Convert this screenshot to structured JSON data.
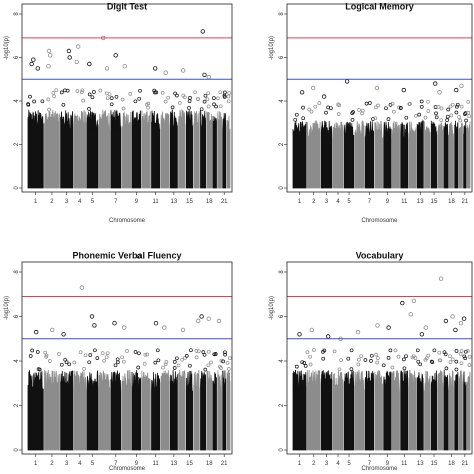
{
  "chart_data": [
    {
      "type": "scatter",
      "title": "Digit Test",
      "xlabel": "Chromosome",
      "ylabel": "-log10(p)",
      "ylim": [
        0,
        8
      ],
      "yticks": [
        0,
        2,
        4,
        6,
        8
      ],
      "x_tick_labels": [
        "1",
        "2",
        "3",
        "4",
        "5",
        "7",
        "9",
        "11",
        "13",
        "15",
        "18",
        "21"
      ],
      "chromosomes": 22,
      "threshold_lines": [
        {
          "value": 6.9,
          "color": "#e04050"
        },
        {
          "value": 5.0,
          "color": "#3a4fd6"
        }
      ],
      "point_colors": [
        "#111111",
        "#8c8c8c"
      ],
      "dense_top": 3.6,
      "peak_points": [
        {
          "chr": 1,
          "y": 5.9
        },
        {
          "chr": 1,
          "y": 5.7
        },
        {
          "chr": 1,
          "y": 5.5
        },
        {
          "chr": 2,
          "y": 6.3
        },
        {
          "chr": 2,
          "y": 6.1
        },
        {
          "chr": 2,
          "y": 5.6
        },
        {
          "chr": 3,
          "y": 6.3
        },
        {
          "chr": 3,
          "y": 6.0
        },
        {
          "chr": 4,
          "y": 6.5
        },
        {
          "chr": 4,
          "y": 5.8
        },
        {
          "chr": 5,
          "y": 5.7
        },
        {
          "chr": 6,
          "y": 6.9
        },
        {
          "chr": 6,
          "y": 5.5
        },
        {
          "chr": 7,
          "y": 6.1
        },
        {
          "chr": 8,
          "y": 5.6
        },
        {
          "chr": 11,
          "y": 5.5
        },
        {
          "chr": 12,
          "y": 5.3
        },
        {
          "chr": 14,
          "y": 5.4
        },
        {
          "chr": 17,
          "y": 7.2
        },
        {
          "chr": 17,
          "y": 5.2
        },
        {
          "chr": 18,
          "y": 5.1
        }
      ]
    },
    {
      "type": "scatter",
      "title": "Logical Memory",
      "xlabel": "Chromosome",
      "ylabel": "-log10(p)",
      "ylim": [
        0,
        8
      ],
      "yticks": [
        0,
        2,
        4,
        6,
        8
      ],
      "x_tick_labels": [
        "1",
        "2",
        "3",
        "4",
        "5",
        "7",
        "9",
        "11",
        "13",
        "15",
        "18",
        "21"
      ],
      "chromosomes": 22,
      "threshold_lines": [
        {
          "value": 6.9,
          "color": "#e04050"
        },
        {
          "value": 5.0,
          "color": "#3a4fd6"
        }
      ],
      "point_colors": [
        "#111111",
        "#8c8c8c"
      ],
      "dense_top": 3.1,
      "peak_points": [
        {
          "chr": 1,
          "y": 4.4
        },
        {
          "chr": 2,
          "y": 4.6
        },
        {
          "chr": 3,
          "y": 4.2
        },
        {
          "chr": 5,
          "y": 4.9
        },
        {
          "chr": 8,
          "y": 4.6
        },
        {
          "chr": 11,
          "y": 4.5
        },
        {
          "chr": 15,
          "y": 4.8
        },
        {
          "chr": 16,
          "y": 4.4
        },
        {
          "chr": 19,
          "y": 4.5
        },
        {
          "chr": 20,
          "y": 4.7
        }
      ]
    },
    {
      "type": "scatter",
      "title": "Phonemic Verbal Fluency",
      "xlabel": "Chromosome",
      "ylabel": "-log10(p)",
      "ylim": [
        0,
        8
      ],
      "yticks": [
        0,
        2,
        4,
        6,
        8
      ],
      "x_tick_labels": [
        "1",
        "2",
        "3",
        "4",
        "5",
        "7",
        "9",
        "11",
        "13",
        "15",
        "18",
        "21"
      ],
      "chromosomes": 22,
      "threshold_lines": [
        {
          "value": 6.9,
          "color": "#e04050"
        },
        {
          "value": 5.0,
          "color": "#3a4fd6"
        }
      ],
      "point_colors": [
        "#111111",
        "#8c8c8c"
      ],
      "dense_top": 3.6,
      "peak_points": [
        {
          "chr": 1,
          "y": 5.3
        },
        {
          "chr": 2,
          "y": 5.4
        },
        {
          "chr": 3,
          "y": 5.2
        },
        {
          "chr": 4,
          "y": 7.3
        },
        {
          "chr": 5,
          "y": 6.0
        },
        {
          "chr": 5,
          "y": 5.6
        },
        {
          "chr": 7,
          "y": 5.7
        },
        {
          "chr": 8,
          "y": 5.5
        },
        {
          "chr": 9,
          "y": 8.7
        },
        {
          "chr": 11,
          "y": 5.7
        },
        {
          "chr": 12,
          "y": 5.5
        },
        {
          "chr": 14,
          "y": 5.4
        },
        {
          "chr": 16,
          "y": 5.8
        },
        {
          "chr": 17,
          "y": 6.0
        },
        {
          "chr": 18,
          "y": 5.9
        },
        {
          "chr": 20,
          "y": 5.8
        }
      ]
    },
    {
      "type": "scatter",
      "title": "Vocabulary",
      "xlabel": "Chromosome",
      "ylabel": "-log10(p)",
      "ylim": [
        0,
        8
      ],
      "yticks": [
        0,
        2,
        4,
        6,
        8
      ],
      "x_tick_labels": [
        "1",
        "2",
        "3",
        "4",
        "5",
        "7",
        "9",
        "11",
        "13",
        "15",
        "18",
        "21"
      ],
      "chromosomes": 22,
      "threshold_lines": [
        {
          "value": 6.9,
          "color": "#e04050"
        },
        {
          "value": 5.0,
          "color": "#3a4fd6"
        }
      ],
      "point_colors": [
        "#111111",
        "#8c8c8c"
      ],
      "dense_top": 3.6,
      "peak_points": [
        {
          "chr": 1,
          "y": 5.2
        },
        {
          "chr": 2,
          "y": 5.4
        },
        {
          "chr": 3,
          "y": 5.1
        },
        {
          "chr": 4,
          "y": 5.0
        },
        {
          "chr": 6,
          "y": 5.3
        },
        {
          "chr": 8,
          "y": 5.6
        },
        {
          "chr": 9,
          "y": 5.5
        },
        {
          "chr": 11,
          "y": 6.6
        },
        {
          "chr": 12,
          "y": 6.7
        },
        {
          "chr": 12,
          "y": 6.1
        },
        {
          "chr": 13,
          "y": 5.2
        },
        {
          "chr": 14,
          "y": 5.5
        },
        {
          "chr": 16,
          "y": 7.7
        },
        {
          "chr": 17,
          "y": 5.8
        },
        {
          "chr": 18,
          "y": 6.0
        },
        {
          "chr": 19,
          "y": 5.4
        },
        {
          "chr": 20,
          "y": 5.7
        },
        {
          "chr": 21,
          "y": 5.9
        }
      ]
    }
  ]
}
